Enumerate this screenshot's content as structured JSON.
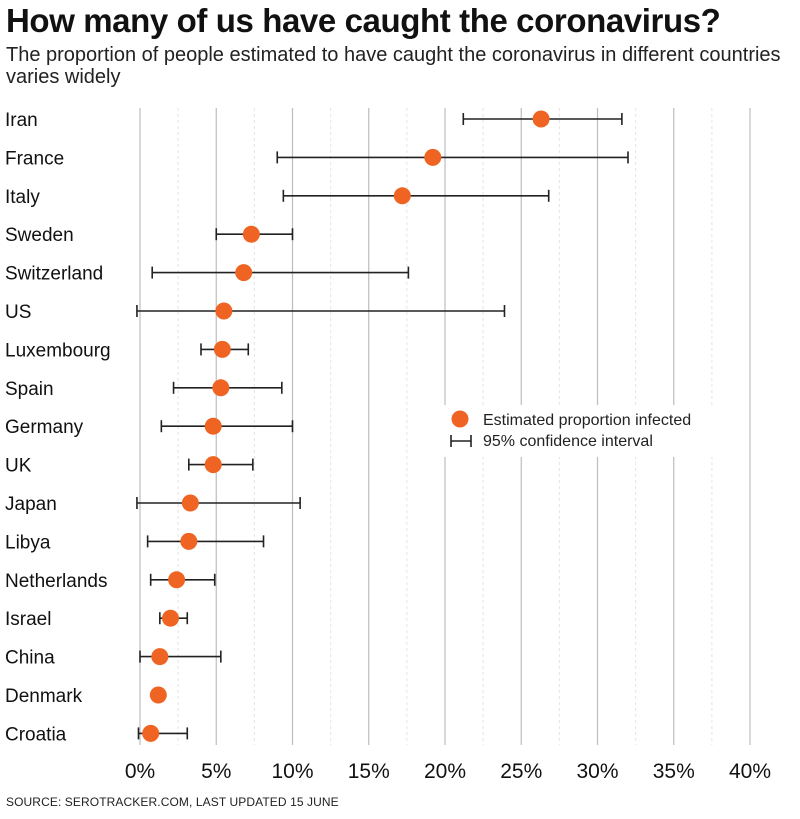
{
  "header": {
    "title": "How many of us have caught the coronavirus?",
    "subtitle": "The proportion of people estimated to have caught the coronavirus in different countries varies widely"
  },
  "footer": {
    "source": "SOURCE: SEROTRACKER.COM, LAST UPDATED 15 JUNE"
  },
  "colors": {
    "point": "#ef6422",
    "gridline": "#bdbdbd",
    "minor_gridline": "#e4e4e4",
    "errorbar": "#222222"
  },
  "chart_data": {
    "type": "scatter",
    "orientation": "horizontal",
    "categories": [
      "Iran",
      "France",
      "Italy",
      "Sweden",
      "Switzerland",
      "US",
      "Luxembourg",
      "Spain",
      "Germany",
      "UK",
      "Japan",
      "Libya",
      "Netherlands",
      "Israel",
      "China",
      "Denmark",
      "Croatia"
    ],
    "series": [
      {
        "name": "Estimated proportion infected",
        "values": [
          26.3,
          19.2,
          17.2,
          7.3,
          6.8,
          5.5,
          5.4,
          5.3,
          4.8,
          4.8,
          3.3,
          3.2,
          2.4,
          2.0,
          1.3,
          1.2,
          0.7
        ]
      }
    ],
    "confidence_interval": {
      "name": "95% confidence interval",
      "lower": [
        21.2,
        9.0,
        9.4,
        5.0,
        0.8,
        -0.2,
        4.0,
        2.2,
        1.4,
        3.2,
        -0.2,
        0.5,
        0.7,
        1.3,
        0.0,
        null,
        -0.1
      ],
      "upper": [
        31.6,
        32.0,
        26.8,
        10.0,
        17.6,
        23.9,
        7.1,
        9.3,
        10.0,
        7.4,
        10.5,
        8.1,
        4.9,
        3.1,
        5.3,
        null,
        3.1
      ]
    },
    "x_ticks": [
      "0%",
      "5%",
      "10%",
      "15%",
      "20%",
      "25%",
      "30%",
      "35%",
      "40%"
    ],
    "xlim": [
      0,
      40
    ],
    "grid": true,
    "legend_position": "right"
  }
}
